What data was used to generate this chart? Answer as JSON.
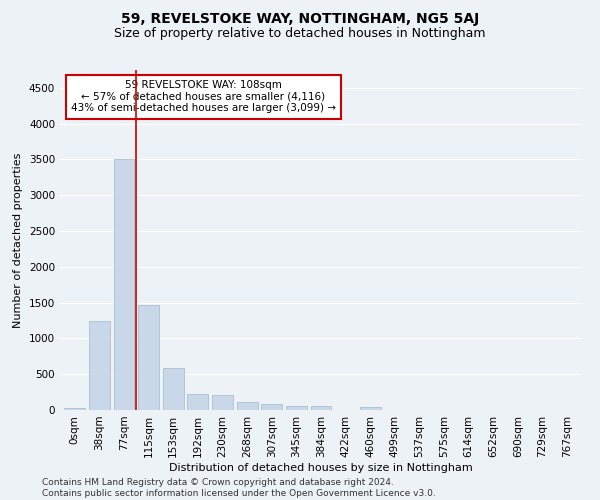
{
  "title": "59, REVELSTOKE WAY, NOTTINGHAM, NG5 5AJ",
  "subtitle": "Size of property relative to detached houses in Nottingham",
  "xlabel": "Distribution of detached houses by size in Nottingham",
  "ylabel": "Number of detached properties",
  "bar_color": "#c8d8e8",
  "bar_edge_color": "#a0b8cc",
  "vline_color": "#cc0000",
  "annotation_text": "59 REVELSTOKE WAY: 108sqm\n← 57% of detached houses are smaller (4,116)\n43% of semi-detached houses are larger (3,099) →",
  "annotation_box_color": "#ffffff",
  "annotation_box_edge": "#cc0000",
  "categories": [
    "0sqm",
    "38sqm",
    "77sqm",
    "115sqm",
    "153sqm",
    "192sqm",
    "230sqm",
    "268sqm",
    "307sqm",
    "345sqm",
    "384sqm",
    "422sqm",
    "460sqm",
    "499sqm",
    "537sqm",
    "575sqm",
    "614sqm",
    "652sqm",
    "690sqm",
    "729sqm",
    "767sqm"
  ],
  "bar_heights": [
    25,
    1250,
    3500,
    1470,
    580,
    230,
    215,
    115,
    80,
    60,
    50,
    0,
    40,
    0,
    0,
    0,
    0,
    0,
    0,
    0,
    0
  ],
  "ylim": [
    0,
    4750
  ],
  "yticks": [
    0,
    500,
    1000,
    1500,
    2000,
    2500,
    3000,
    3500,
    4000,
    4500
  ],
  "footer_text": "Contains HM Land Registry data © Crown copyright and database right 2024.\nContains public sector information licensed under the Open Government Licence v3.0.",
  "bg_color": "#edf2f7",
  "grid_color": "#ffffff",
  "title_fontsize": 10,
  "subtitle_fontsize": 9,
  "axis_label_fontsize": 8,
  "tick_fontsize": 7.5,
  "footer_fontsize": 6.5,
  "annot_fontsize": 7.5
}
